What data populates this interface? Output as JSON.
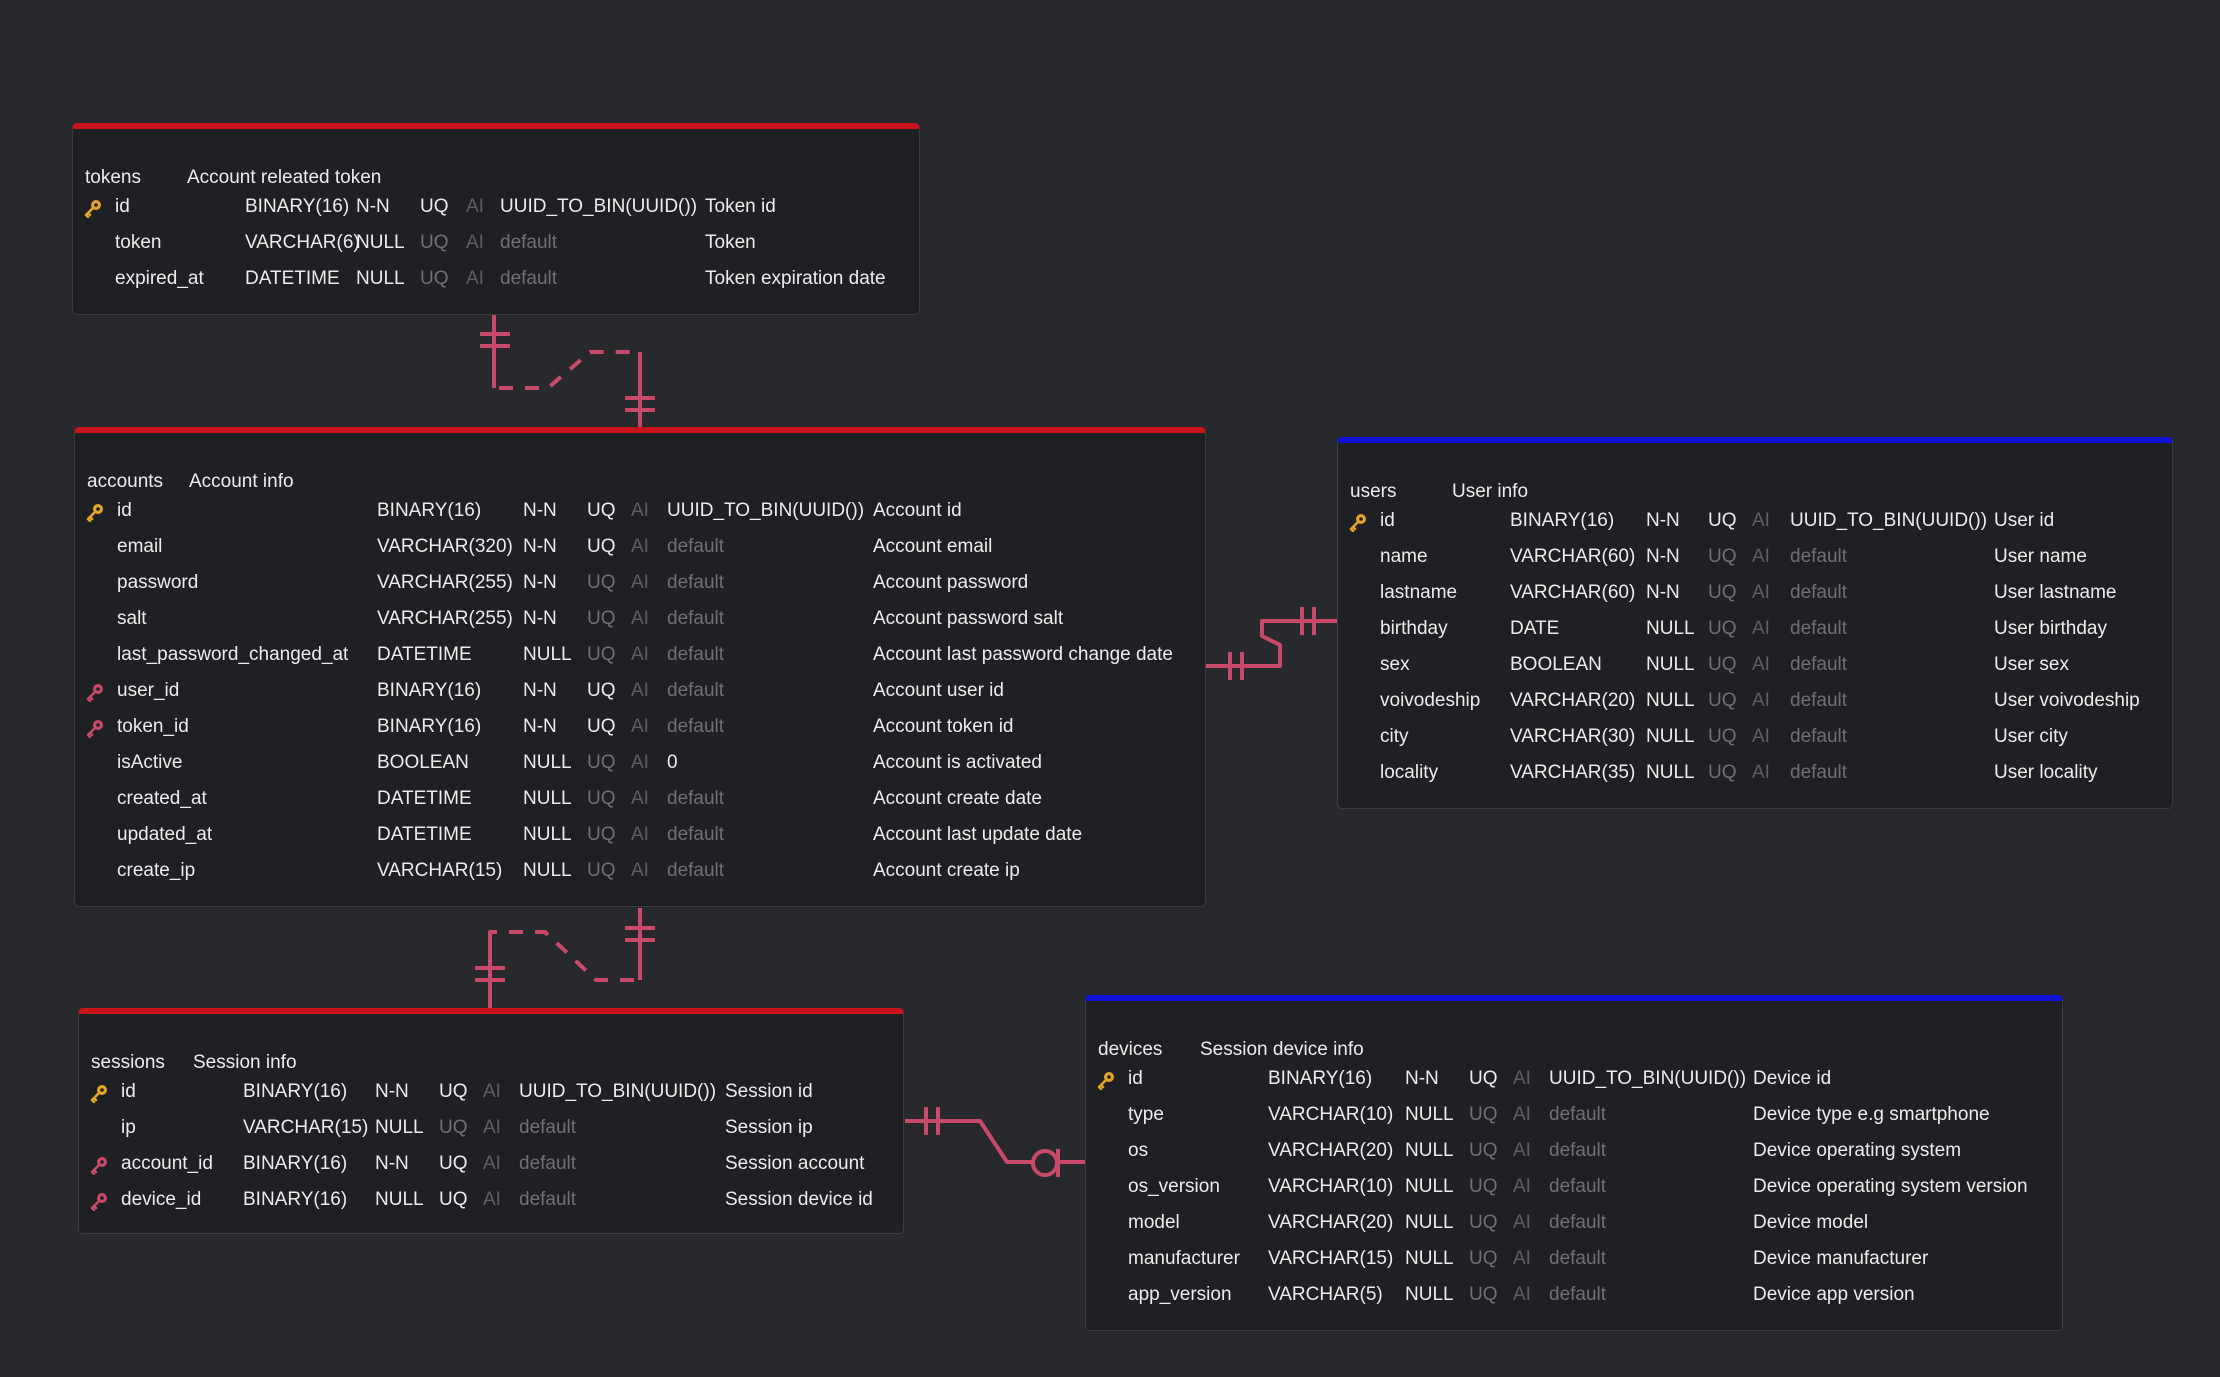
{
  "colors": {
    "relation_line": "#c8496a",
    "primary_key_icon": "#e3a52a",
    "foreign_key_icon": "#c8496a",
    "header_red": "#c8141b",
    "header_blue": "#0f14d8"
  },
  "tables": [
    {
      "id": "tokens",
      "name": "tokens",
      "description": "Account releated token",
      "columns": [
        {
          "key": "pk",
          "name": "id",
          "type": "BINARY(16)",
          "nullable": "N-N",
          "uq": "UQ",
          "uq_on": true,
          "ai": "AI",
          "default": "UUID_TO_BIN(UUID())",
          "default_on": true,
          "comment": "Token id"
        },
        {
          "key": "",
          "name": "token",
          "type": "VARCHAR(6)",
          "nullable": "NULL",
          "uq": "UQ",
          "uq_on": false,
          "ai": "AI",
          "default": "default",
          "default_on": false,
          "comment": "Token"
        },
        {
          "key": "",
          "name": "expired_at",
          "type": "DATETIME",
          "nullable": "NULL",
          "uq": "UQ",
          "uq_on": false,
          "ai": "AI",
          "default": "default",
          "default_on": false,
          "comment": "Token expiration date"
        }
      ]
    },
    {
      "id": "accounts",
      "name": "accounts",
      "description": "Account info",
      "columns": [
        {
          "key": "pk",
          "name": "id",
          "type": "BINARY(16)",
          "nullable": "N-N",
          "uq": "UQ",
          "uq_on": true,
          "ai": "AI",
          "default": "UUID_TO_BIN(UUID())",
          "default_on": true,
          "comment": "Account id"
        },
        {
          "key": "",
          "name": "email",
          "type": "VARCHAR(320)",
          "nullable": "N-N",
          "uq": "UQ",
          "uq_on": true,
          "ai": "AI",
          "default": "default",
          "default_on": false,
          "comment": "Account email"
        },
        {
          "key": "",
          "name": "password",
          "type": "VARCHAR(255)",
          "nullable": "N-N",
          "uq": "UQ",
          "uq_on": false,
          "ai": "AI",
          "default": "default",
          "default_on": false,
          "comment": "Account password"
        },
        {
          "key": "",
          "name": "salt",
          "type": "VARCHAR(255)",
          "nullable": "N-N",
          "uq": "UQ",
          "uq_on": false,
          "ai": "AI",
          "default": "default",
          "default_on": false,
          "comment": "Account password salt"
        },
        {
          "key": "",
          "name": "last_password_changed_at",
          "type": "DATETIME",
          "nullable": "NULL",
          "uq": "UQ",
          "uq_on": false,
          "ai": "AI",
          "default": "default",
          "default_on": false,
          "comment": "Account last password change date"
        },
        {
          "key": "fk",
          "name": "user_id",
          "type": "BINARY(16)",
          "nullable": "N-N",
          "uq": "UQ",
          "uq_on": true,
          "ai": "AI",
          "default": "default",
          "default_on": false,
          "comment": "Account user id"
        },
        {
          "key": "fk",
          "name": "token_id",
          "type": "BINARY(16)",
          "nullable": "N-N",
          "uq": "UQ",
          "uq_on": true,
          "ai": "AI",
          "default": "default",
          "default_on": false,
          "comment": "Account token id"
        },
        {
          "key": "",
          "name": "isActive",
          "type": "BOOLEAN",
          "nullable": "NULL",
          "uq": "UQ",
          "uq_on": false,
          "ai": "AI",
          "default": "0",
          "default_on": true,
          "comment": "Account is activated"
        },
        {
          "key": "",
          "name": "created_at",
          "type": "DATETIME",
          "nullable": "NULL",
          "uq": "UQ",
          "uq_on": false,
          "ai": "AI",
          "default": "default",
          "default_on": false,
          "comment": "Account create date"
        },
        {
          "key": "",
          "name": "updated_at",
          "type": "DATETIME",
          "nullable": "NULL",
          "uq": "UQ",
          "uq_on": false,
          "ai": "AI",
          "default": "default",
          "default_on": false,
          "comment": "Account last update date"
        },
        {
          "key": "",
          "name": "create_ip",
          "type": "VARCHAR(15)",
          "nullable": "NULL",
          "uq": "UQ",
          "uq_on": false,
          "ai": "AI",
          "default": "default",
          "default_on": false,
          "comment": "Account create ip"
        }
      ]
    },
    {
      "id": "users",
      "name": "users",
      "description": "User info",
      "columns": [
        {
          "key": "pk",
          "name": "id",
          "type": "BINARY(16)",
          "nullable": "N-N",
          "uq": "UQ",
          "uq_on": true,
          "ai": "AI",
          "default": "UUID_TO_BIN(UUID())",
          "default_on": true,
          "comment": "User id"
        },
        {
          "key": "",
          "name": "name",
          "type": "VARCHAR(60)",
          "nullable": "N-N",
          "uq": "UQ",
          "uq_on": false,
          "ai": "AI",
          "default": "default",
          "default_on": false,
          "comment": "User name"
        },
        {
          "key": "",
          "name": "lastname",
          "type": "VARCHAR(60)",
          "nullable": "N-N",
          "uq": "UQ",
          "uq_on": false,
          "ai": "AI",
          "default": "default",
          "default_on": false,
          "comment": "User lastname"
        },
        {
          "key": "",
          "name": "birthday",
          "type": "DATE",
          "nullable": "NULL",
          "uq": "UQ",
          "uq_on": false,
          "ai": "AI",
          "default": "default",
          "default_on": false,
          "comment": "User birthday"
        },
        {
          "key": "",
          "name": "sex",
          "type": "BOOLEAN",
          "nullable": "NULL",
          "uq": "UQ",
          "uq_on": false,
          "ai": "AI",
          "default": "default",
          "default_on": false,
          "comment": "User sex"
        },
        {
          "key": "",
          "name": "voivodeship",
          "type": "VARCHAR(20)",
          "nullable": "NULL",
          "uq": "UQ",
          "uq_on": false,
          "ai": "AI",
          "default": "default",
          "default_on": false,
          "comment": "User voivodeship"
        },
        {
          "key": "",
          "name": "city",
          "type": "VARCHAR(30)",
          "nullable": "NULL",
          "uq": "UQ",
          "uq_on": false,
          "ai": "AI",
          "default": "default",
          "default_on": false,
          "comment": "User city"
        },
        {
          "key": "",
          "name": "locality",
          "type": "VARCHAR(35)",
          "nullable": "NULL",
          "uq": "UQ",
          "uq_on": false,
          "ai": "AI",
          "default": "default",
          "default_on": false,
          "comment": "User locality"
        }
      ]
    },
    {
      "id": "sessions",
      "name": "sessions",
      "description": "Session info",
      "columns": [
        {
          "key": "pk",
          "name": "id",
          "type": "BINARY(16)",
          "nullable": "N-N",
          "uq": "UQ",
          "uq_on": true,
          "ai": "AI",
          "default": "UUID_TO_BIN(UUID())",
          "default_on": true,
          "comment": "Session id"
        },
        {
          "key": "",
          "name": "ip",
          "type": "VARCHAR(15)",
          "nullable": "NULL",
          "uq": "UQ",
          "uq_on": false,
          "ai": "AI",
          "default": "default",
          "default_on": false,
          "comment": "Session ip"
        },
        {
          "key": "fk",
          "name": "account_id",
          "type": "BINARY(16)",
          "nullable": "N-N",
          "uq": "UQ",
          "uq_on": true,
          "ai": "AI",
          "default": "default",
          "default_on": false,
          "comment": "Session account"
        },
        {
          "key": "fk",
          "name": "device_id",
          "type": "BINARY(16)",
          "nullable": "NULL",
          "uq": "UQ",
          "uq_on": true,
          "ai": "AI",
          "default": "default",
          "default_on": false,
          "comment": "Session device id"
        }
      ]
    },
    {
      "id": "devices",
      "name": "devices",
      "description": "Session device info",
      "columns": [
        {
          "key": "pk",
          "name": "id",
          "type": "BINARY(16)",
          "nullable": "N-N",
          "uq": "UQ",
          "uq_on": true,
          "ai": "AI",
          "default": "UUID_TO_BIN(UUID())",
          "default_on": true,
          "comment": "Device id"
        },
        {
          "key": "",
          "name": "type",
          "type": "VARCHAR(10)",
          "nullable": "NULL",
          "uq": "UQ",
          "uq_on": false,
          "ai": "AI",
          "default": "default",
          "default_on": false,
          "comment": "Device type e.g smartphone"
        },
        {
          "key": "",
          "name": "os",
          "type": "VARCHAR(20)",
          "nullable": "NULL",
          "uq": "UQ",
          "uq_on": false,
          "ai": "AI",
          "default": "default",
          "default_on": false,
          "comment": "Device operating system"
        },
        {
          "key": "",
          "name": "os_version",
          "type": "VARCHAR(10)",
          "nullable": "NULL",
          "uq": "UQ",
          "uq_on": false,
          "ai": "AI",
          "default": "default",
          "default_on": false,
          "comment": "Device operating system version"
        },
        {
          "key": "",
          "name": "model",
          "type": "VARCHAR(20)",
          "nullable": "NULL",
          "uq": "UQ",
          "uq_on": false,
          "ai": "AI",
          "default": "default",
          "default_on": false,
          "comment": "Device model"
        },
        {
          "key": "",
          "name": "manufacturer",
          "type": "VARCHAR(15)",
          "nullable": "NULL",
          "uq": "UQ",
          "uq_on": false,
          "ai": "AI",
          "default": "default",
          "default_on": false,
          "comment": "Device manufacturer"
        },
        {
          "key": "",
          "name": "app_version",
          "type": "VARCHAR(5)",
          "nullable": "NULL",
          "uq": "UQ",
          "uq_on": false,
          "ai": "AI",
          "default": "default",
          "default_on": false,
          "comment": "Device app version"
        }
      ]
    }
  ],
  "relations": [
    {
      "from": "tokens.id",
      "to": "accounts.token_id",
      "from_card": "one-and-only-one",
      "to_card": "one-and-only-one",
      "style": "dashed"
    },
    {
      "from": "users.id",
      "to": "accounts.user_id",
      "from_card": "one-and-only-one",
      "to_card": "one-and-only-one",
      "style": "solid"
    },
    {
      "from": "accounts.id",
      "to": "sessions.account_id",
      "from_card": "one-and-only-one",
      "to_card": "one-and-only-one",
      "style": "dashed"
    },
    {
      "from": "devices.id",
      "to": "sessions.device_id",
      "from_card": "zero-or-one",
      "to_card": "one-and-only-one",
      "style": "solid"
    }
  ]
}
